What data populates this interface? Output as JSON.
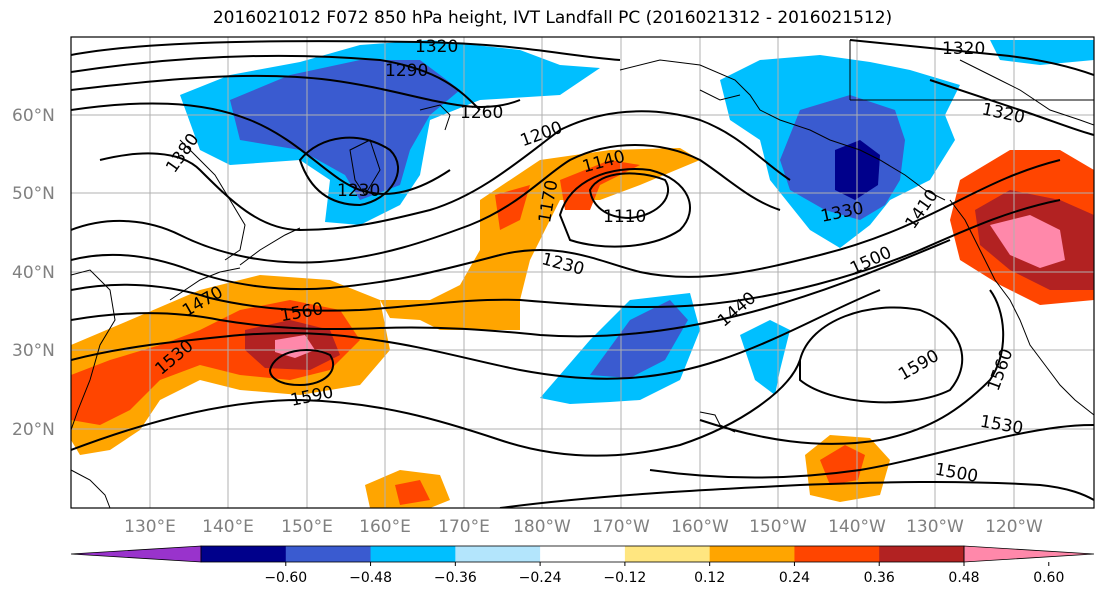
{
  "title": "2016021012 F072 850 hPa height, IVT Landfall PC (2016021312 - 2016021512)",
  "map": {
    "lon_labels": [
      "130°E",
      "140°E",
      "150°E",
      "160°E",
      "170°E",
      "180°W",
      "170°W",
      "160°W",
      "150°W",
      "140°W",
      "130°W",
      "120°W"
    ],
    "lat_labels": [
      "60°N",
      "50°N",
      "40°N",
      "30°N",
      "20°N"
    ],
    "contour_labels": [
      "1320",
      "1290",
      "1260",
      "1380",
      "1230",
      "1200",
      "1140",
      "1170",
      "1110",
      "1230",
      "1330",
      "1410",
      "1500",
      "1440",
      "1560",
      "1530",
      "1590",
      "1590",
      "1560",
      "1530",
      "1500",
      "1320",
      "1470"
    ]
  },
  "colorbar": {
    "ticks": [
      "−0.60",
      "−0.48",
      "−0.36",
      "−0.24",
      "−0.12",
      "0.12",
      "0.24",
      "0.36",
      "0.48",
      "0.60"
    ],
    "colors": [
      "#9933cc",
      "#00008b",
      "#3a5bd0",
      "#00bfff",
      "#b3e5fc",
      "#ffffff",
      "#ffe680",
      "#ffa500",
      "#ff4500",
      "#b22222",
      "#ff88aa"
    ]
  }
}
